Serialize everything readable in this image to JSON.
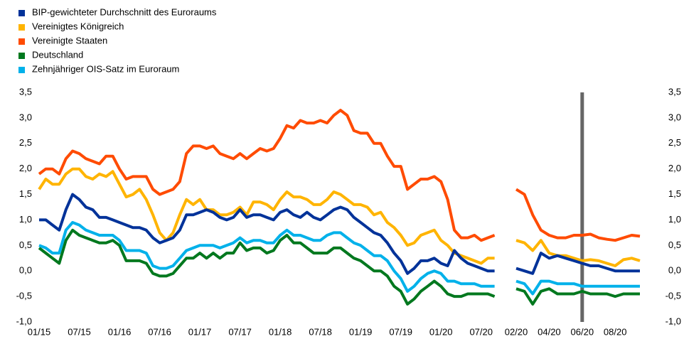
{
  "chart_data": [
    {
      "type": "line",
      "categories": [
        "01/15",
        null,
        null,
        null,
        null,
        null,
        "07/15",
        null,
        null,
        null,
        null,
        null,
        "01/16",
        null,
        null,
        null,
        null,
        null,
        "07/16",
        null,
        null,
        null,
        null,
        null,
        "01/17",
        null,
        null,
        null,
        null,
        null,
        "07/17",
        null,
        null,
        null,
        null,
        null,
        "01/18",
        null,
        null,
        null,
        null,
        null,
        "07/18",
        null,
        null,
        null,
        null,
        null,
        "01/19",
        null,
        null,
        null,
        null,
        null,
        "07/19",
        null,
        null,
        null,
        null,
        null,
        "01/20",
        null,
        null,
        null,
        null,
        null,
        "07/20",
        null,
        null
      ],
      "series": [
        {
          "name": "BIP-gewichteter Durchschnitt des Euroraums",
          "color": "#003299",
          "values": [
            1.0,
            1.0,
            0.9,
            0.8,
            1.2,
            1.5,
            1.4,
            1.25,
            1.2,
            1.05,
            1.05,
            1.0,
            0.95,
            0.9,
            0.85,
            0.85,
            0.8,
            0.65,
            0.55,
            0.6,
            0.65,
            0.8,
            1.1,
            1.1,
            1.15,
            1.2,
            1.15,
            1.05,
            1.0,
            1.05,
            1.2,
            1.05,
            1.1,
            1.1,
            1.05,
            1.0,
            1.15,
            1.2,
            1.1,
            1.05,
            1.15,
            1.05,
            1.0,
            1.1,
            1.2,
            1.25,
            1.2,
            1.05,
            0.95,
            0.85,
            0.75,
            0.7,
            0.55,
            0.35,
            0.2,
            -0.05,
            0.05,
            0.2,
            0.2,
            0.25,
            0.15,
            0.1,
            0.4,
            0.25,
            0.15,
            0.1,
            0.05,
            0.0,
            0.0
          ]
        },
        {
          "name": "Vereinigtes Königreich",
          "color": "#ffb400",
          "values": [
            1.6,
            1.8,
            1.7,
            1.7,
            1.9,
            2.0,
            2.0,
            1.85,
            1.8,
            1.9,
            1.85,
            1.95,
            1.7,
            1.45,
            1.5,
            1.6,
            1.4,
            1.1,
            0.75,
            0.6,
            0.75,
            1.1,
            1.4,
            1.3,
            1.4,
            1.2,
            1.2,
            1.1,
            1.1,
            1.15,
            1.25,
            1.1,
            1.35,
            1.35,
            1.3,
            1.2,
            1.4,
            1.55,
            1.45,
            1.45,
            1.4,
            1.3,
            1.3,
            1.4,
            1.55,
            1.5,
            1.4,
            1.3,
            1.3,
            1.25,
            1.1,
            1.15,
            0.95,
            0.85,
            0.7,
            0.5,
            0.55,
            0.7,
            0.75,
            0.8,
            0.6,
            0.5,
            0.35,
            0.3,
            0.25,
            0.2,
            0.15,
            0.25,
            0.25
          ]
        },
        {
          "name": "Vereinigte Staaten",
          "color": "#ff4b00",
          "values": [
            1.9,
            2.0,
            2.0,
            1.9,
            2.2,
            2.35,
            2.3,
            2.2,
            2.15,
            2.1,
            2.25,
            2.25,
            2.0,
            1.8,
            1.85,
            1.85,
            1.85,
            1.6,
            1.5,
            1.55,
            1.6,
            1.75,
            2.3,
            2.45,
            2.45,
            2.4,
            2.45,
            2.3,
            2.25,
            2.2,
            2.3,
            2.2,
            2.3,
            2.4,
            2.35,
            2.4,
            2.6,
            2.85,
            2.8,
            2.95,
            2.9,
            2.9,
            2.95,
            2.9,
            3.05,
            3.15,
            3.05,
            2.75,
            2.7,
            2.7,
            2.5,
            2.5,
            2.25,
            2.05,
            2.05,
            1.6,
            1.7,
            1.8,
            1.8,
            1.85,
            1.75,
            1.4,
            0.8,
            0.65,
            0.65,
            0.7,
            0.6,
            0.65,
            0.7
          ]
        },
        {
          "name": "Deutschland",
          "color": "#00781e",
          "values": [
            0.45,
            0.35,
            0.25,
            0.15,
            0.6,
            0.8,
            0.7,
            0.65,
            0.6,
            0.55,
            0.55,
            0.6,
            0.5,
            0.2,
            0.2,
            0.2,
            0.15,
            -0.05,
            -0.1,
            -0.1,
            -0.05,
            0.1,
            0.25,
            0.25,
            0.35,
            0.25,
            0.35,
            0.25,
            0.35,
            0.35,
            0.55,
            0.4,
            0.45,
            0.45,
            0.35,
            0.4,
            0.6,
            0.7,
            0.55,
            0.55,
            0.45,
            0.35,
            0.35,
            0.35,
            0.45,
            0.45,
            0.35,
            0.25,
            0.2,
            0.1,
            0.0,
            0.0,
            -0.1,
            -0.3,
            -0.4,
            -0.65,
            -0.55,
            -0.4,
            -0.3,
            -0.2,
            -0.3,
            -0.45,
            -0.5,
            -0.5,
            -0.45,
            -0.45,
            -0.45,
            -0.45,
            -0.5
          ]
        },
        {
          "name": "Zehnjähriger OIS-Satz im Euroraum",
          "color": "#00b1ea",
          "values": [
            0.5,
            0.45,
            0.35,
            0.35,
            0.8,
            0.95,
            0.9,
            0.8,
            0.75,
            0.7,
            0.7,
            0.7,
            0.6,
            0.4,
            0.4,
            0.4,
            0.35,
            0.1,
            0.05,
            0.05,
            0.1,
            0.25,
            0.4,
            0.45,
            0.5,
            0.5,
            0.5,
            0.45,
            0.5,
            0.55,
            0.65,
            0.55,
            0.6,
            0.6,
            0.55,
            0.55,
            0.7,
            0.8,
            0.7,
            0.7,
            0.65,
            0.6,
            0.6,
            0.7,
            0.75,
            0.75,
            0.65,
            0.55,
            0.5,
            0.4,
            0.3,
            0.3,
            0.2,
            0.0,
            -0.15,
            -0.4,
            -0.3,
            -0.15,
            -0.05,
            0.0,
            -0.05,
            -0.2,
            -0.2,
            -0.25,
            -0.25,
            -0.25,
            -0.3,
            -0.3,
            -0.3
          ]
        }
      ],
      "ylim": [
        -1.0,
        3.5
      ],
      "yticks": [
        {
          "value": -1.0,
          "label": "-1,0"
        },
        {
          "value": -0.5,
          "label": "-0,5"
        },
        {
          "value": 0,
          "label": "0,0"
        },
        {
          "value": 0.5,
          "label": "0,5"
        },
        {
          "value": 1.0,
          "label": "1,0"
        },
        {
          "value": 1.5,
          "label": "1,5"
        },
        {
          "value": 2.0,
          "label": "2,0"
        },
        {
          "value": 2.5,
          "label": "2,5"
        },
        {
          "value": 3.0,
          "label": "3,0"
        },
        {
          "value": 3.5,
          "label": "3,5"
        }
      ],
      "legend": "top-left"
    },
    {
      "type": "line",
      "categories": [
        "02/20",
        null,
        null,
        null,
        "04/20",
        null,
        null,
        null,
        "06/20",
        null,
        null,
        null,
        "08/20",
        null,
        null,
        null
      ],
      "series": [
        {
          "values": [
            0.05,
            0.0,
            -0.05,
            0.35,
            0.25,
            0.3,
            0.25,
            0.2,
            0.15,
            0.1,
            0.1,
            0.05,
            0.0,
            0.0,
            0.0,
            0.0
          ]
        },
        {
          "values": [
            0.6,
            0.55,
            0.4,
            0.6,
            0.35,
            0.3,
            0.3,
            0.25,
            0.2,
            0.22,
            0.2,
            0.15,
            0.1,
            0.22,
            0.25,
            0.2
          ]
        },
        {
          "values": [
            1.6,
            1.5,
            1.1,
            0.8,
            0.7,
            0.65,
            0.65,
            0.7,
            0.7,
            0.72,
            0.65,
            0.62,
            0.6,
            0.65,
            0.7,
            0.68
          ]
        },
        {
          "values": [
            -0.35,
            -0.4,
            -0.65,
            -0.4,
            -0.35,
            -0.45,
            -0.45,
            -0.45,
            -0.4,
            -0.45,
            -0.45,
            -0.45,
            -0.5,
            -0.45,
            -0.45,
            -0.45
          ]
        },
        {
          "values": [
            -0.2,
            -0.25,
            -0.45,
            -0.2,
            -0.2,
            -0.25,
            -0.25,
            -0.25,
            -0.3,
            -0.3,
            -0.3,
            -0.3,
            -0.3,
            -0.3,
            -0.3,
            -0.3
          ]
        }
      ],
      "ylim": [
        -1.0,
        3.5
      ],
      "yticks": [
        {
          "value": -1.0,
          "label": "-1,0"
        },
        {
          "value": -0.5,
          "label": "-0,5"
        },
        {
          "value": 0,
          "label": "0,0"
        },
        {
          "value": 0.5,
          "label": "0,5"
        },
        {
          "value": 1.0,
          "label": "1,0"
        },
        {
          "value": 1.5,
          "label": "1,5"
        },
        {
          "value": 2.0,
          "label": "2,0"
        },
        {
          "value": 2.5,
          "label": "2,5"
        },
        {
          "value": 3.0,
          "label": "3,0"
        },
        {
          "value": 3.5,
          "label": "3,5"
        }
      ],
      "annotations": [
        {
          "x": "06/20",
          "color": "#666666"
        }
      ]
    }
  ]
}
